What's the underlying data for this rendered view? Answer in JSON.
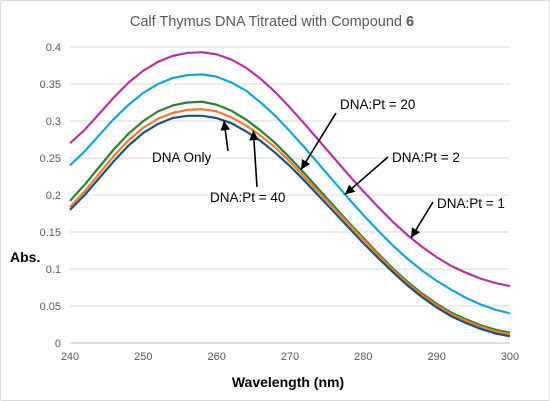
{
  "chart_data": {
    "type": "line",
    "title": "Calf Thymus DNA Titrated with Compound",
    "title_bold_suffix": "6",
    "xlabel": "Wavelength (nm)",
    "ylabel": "Abs.",
    "xlim": [
      240,
      300
    ],
    "ylim": [
      0,
      0.4
    ],
    "x_ticks": [
      "240",
      "250",
      "260",
      "270",
      "280",
      "290",
      "300"
    ],
    "y_ticks": [
      "0",
      "0.05",
      "0.1",
      "0.15",
      "0.2",
      "0.25",
      "0.3",
      "0.35",
      "0.4"
    ],
    "grid": "horizontal",
    "x": [
      240,
      242,
      244,
      246,
      248,
      250,
      252,
      254,
      256,
      258,
      260,
      262,
      264,
      266,
      268,
      270,
      272,
      274,
      276,
      278,
      280,
      282,
      284,
      286,
      288,
      290,
      292,
      294,
      296,
      298,
      300
    ],
    "series": [
      {
        "key": "dna_pt_1",
        "color": "#b2359a",
        "values": [
          0.27,
          0.288,
          0.31,
          0.332,
          0.352,
          0.368,
          0.38,
          0.388,
          0.392,
          0.393,
          0.39,
          0.383,
          0.372,
          0.357,
          0.339,
          0.318,
          0.296,
          0.273,
          0.25,
          0.227,
          0.205,
          0.184,
          0.164,
          0.146,
          0.13,
          0.116,
          0.104,
          0.095,
          0.087,
          0.081,
          0.077
        ]
      },
      {
        "key": "dna_pt_2",
        "color": "#1aa3cf",
        "values": [
          0.24,
          0.259,
          0.281,
          0.303,
          0.322,
          0.338,
          0.35,
          0.358,
          0.362,
          0.363,
          0.36,
          0.352,
          0.341,
          0.325,
          0.307,
          0.286,
          0.264,
          0.241,
          0.218,
          0.195,
          0.173,
          0.152,
          0.132,
          0.114,
          0.098,
          0.084,
          0.072,
          0.061,
          0.052,
          0.045,
          0.04
        ]
      },
      {
        "key": "dna_pt_20",
        "color": "#2e7d32",
        "values": [
          0.192,
          0.214,
          0.238,
          0.262,
          0.283,
          0.3,
          0.313,
          0.321,
          0.325,
          0.326,
          0.322,
          0.314,
          0.302,
          0.287,
          0.27,
          0.25,
          0.229,
          0.207,
          0.185,
          0.163,
          0.142,
          0.121,
          0.101,
          0.083,
          0.067,
          0.053,
          0.041,
          0.032,
          0.024,
          0.018,
          0.014
        ]
      },
      {
        "key": "dna_pt_40",
        "color": "#f07b2d",
        "values": [
          0.184,
          0.205,
          0.229,
          0.253,
          0.274,
          0.291,
          0.303,
          0.311,
          0.315,
          0.316,
          0.313,
          0.305,
          0.294,
          0.28,
          0.264,
          0.245,
          0.224,
          0.203,
          0.182,
          0.161,
          0.14,
          0.119,
          0.099,
          0.081,
          0.065,
          0.051,
          0.039,
          0.03,
          0.022,
          0.016,
          0.012
        ]
      },
      {
        "key": "dna_only",
        "color": "#1f4e79",
        "values": [
          0.18,
          0.2,
          0.223,
          0.246,
          0.267,
          0.284,
          0.296,
          0.304,
          0.307,
          0.307,
          0.304,
          0.297,
          0.286,
          0.273,
          0.257,
          0.239,
          0.219,
          0.198,
          0.177,
          0.156,
          0.135,
          0.115,
          0.096,
          0.078,
          0.062,
          0.048,
          0.036,
          0.027,
          0.019,
          0.013,
          0.009
        ]
      }
    ],
    "annotations": [
      {
        "text": "DNA:Pt = 20",
        "series": "dna_pt_20"
      },
      {
        "text": "DNA:Pt = 2",
        "series": "dna_pt_2"
      },
      {
        "text": "DNA:Pt = 1",
        "series": "dna_pt_1"
      },
      {
        "text": "DNA Only",
        "series": "dna_only"
      },
      {
        "text": "DNA:Pt = 40",
        "series": "dna_pt_40"
      }
    ]
  }
}
